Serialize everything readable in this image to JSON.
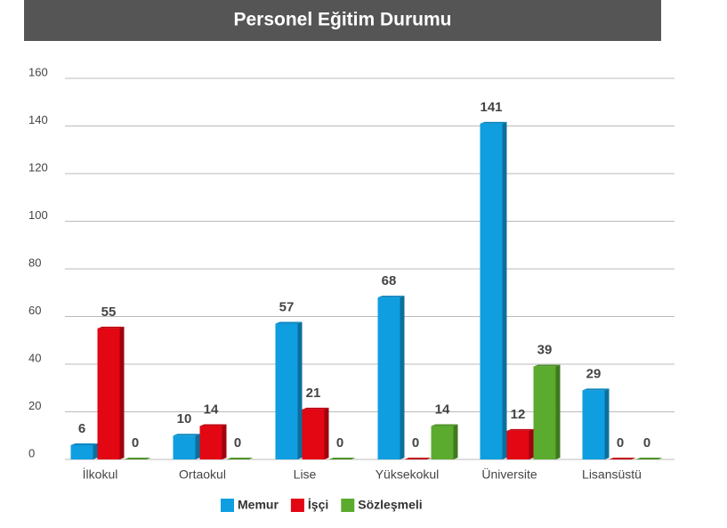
{
  "chart_data": {
    "type": "bar",
    "title": "Personel Eğitim Durumu",
    "categories": [
      "İlkokul",
      "Ortaokul",
      "Lise",
      "Yüksekokul",
      "Üniversite",
      "Lisansüstü"
    ],
    "series": [
      {
        "name": "Memur",
        "color": "#0f9ee0",
        "values": [
          6,
          10,
          57,
          68,
          141,
          29
        ]
      },
      {
        "name": "İşçi",
        "color": "#e30613",
        "values": [
          55,
          14,
          21,
          0,
          12,
          0
        ]
      },
      {
        "name": "Sözleşmeli",
        "color": "#5aab2e",
        "values": [
          0,
          0,
          0,
          14,
          39,
          0
        ]
      }
    ],
    "ylim": [
      0,
      160
    ],
    "yticks": [
      0,
      20,
      40,
      60,
      80,
      100,
      120,
      140,
      160
    ],
    "grid": true,
    "legend": "bottom"
  }
}
